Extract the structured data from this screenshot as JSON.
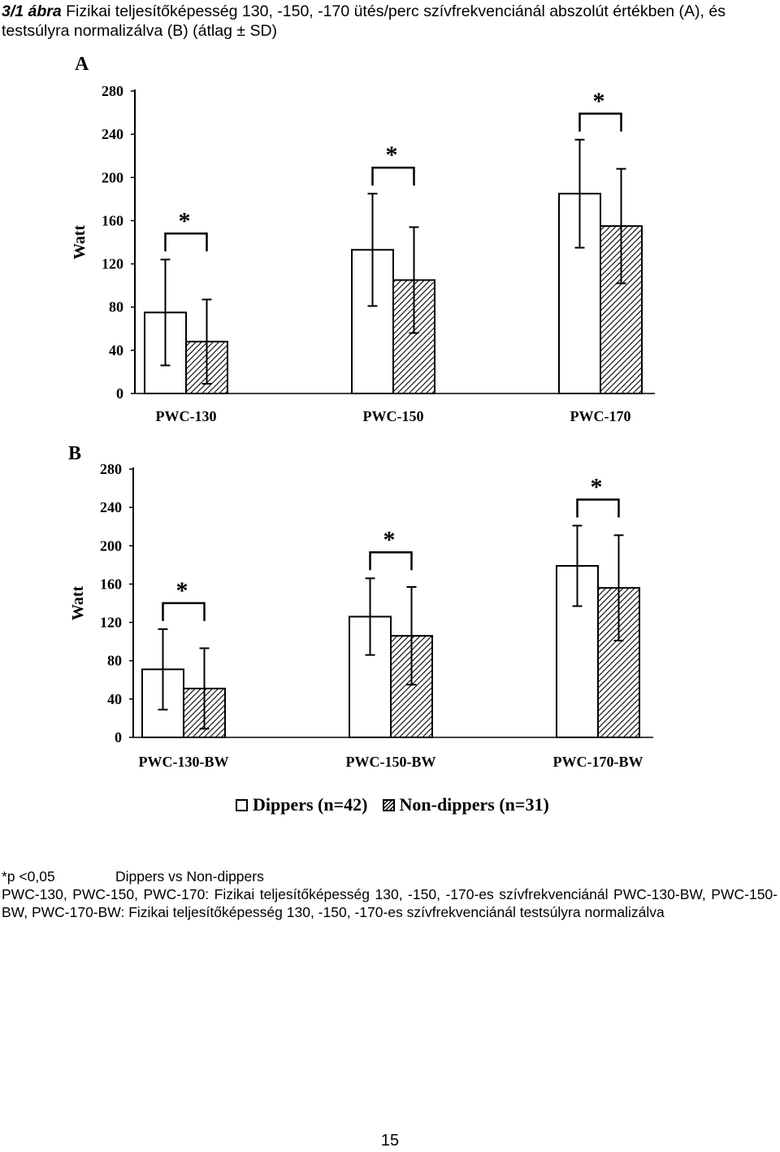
{
  "caption": {
    "figure_number": "3/1 ábra",
    "text": "Fizikai teljesítőképesség 130, -150, -170 ütés/perc szívfrekvenciánál abszolút értékben (A), és testsúlyra normalizálva (B) (átlag ± SD)"
  },
  "chart_data": [
    {
      "type": "bar",
      "panel_label": "A",
      "ylabel": "Watt",
      "ylim": [
        0,
        280
      ],
      "yticks": [
        0,
        40,
        80,
        120,
        160,
        200,
        240,
        280
      ],
      "categories": [
        "PWC-130",
        "PWC-150",
        "PWC-170"
      ],
      "series": [
        {
          "name": "Dippers (n=42)",
          "fill": "white",
          "values": [
            75,
            133,
            185
          ],
          "sd": [
            49,
            52,
            50
          ]
        },
        {
          "name": "Non-dippers (n=31)",
          "fill": "hatched",
          "values": [
            48,
            105,
            155
          ],
          "sd": [
            39,
            49,
            53
          ]
        }
      ],
      "significance": [
        "*",
        "*",
        "*"
      ],
      "grid": false
    },
    {
      "type": "bar",
      "panel_label": "B",
      "ylabel": "Watt",
      "ylim": [
        0,
        280
      ],
      "yticks": [
        0,
        40,
        80,
        120,
        160,
        200,
        240,
        280
      ],
      "categories": [
        "PWC-130-BW",
        "PWC-150-BW",
        "PWC-170-BW"
      ],
      "series": [
        {
          "name": "Dippers (n=42)",
          "fill": "white",
          "values": [
            71,
            126,
            179
          ],
          "sd": [
            42,
            40,
            42
          ]
        },
        {
          "name": "Non-dippers (n=31)",
          "fill": "hatched",
          "values": [
            51,
            106,
            156
          ],
          "sd": [
            42,
            51,
            55
          ]
        }
      ],
      "significance": [
        "*",
        "*",
        "*"
      ],
      "grid": false
    }
  ],
  "legend": {
    "dippers": "Dippers (n=42)",
    "nondippers": "Non-dippers (n=31)"
  },
  "footnote": {
    "significance": "*p <0,05",
    "comparison": "Dippers vs Non-dippers",
    "definitions": "PWC-130, PWC-150, PWC-170: Fizikai teljesítőképesség 130, -150, -170-es szívfrekvenciánál PWC-130-BW, PWC-150-BW, PWC-170-BW: Fizikai teljesítőképesség 130, -150, -170-es szívfrekvenciánál testsúlyra normalizálva"
  },
  "page_number": "15"
}
